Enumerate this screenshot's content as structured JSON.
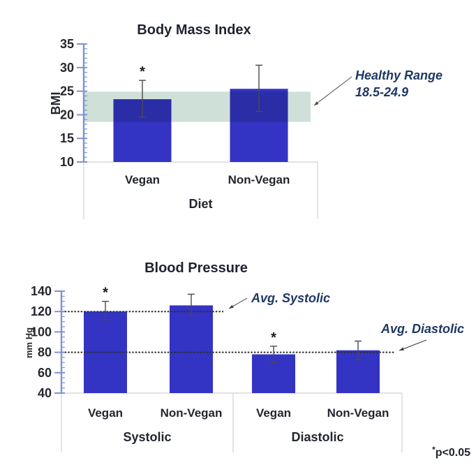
{
  "footnote": {
    "marker": "*",
    "text": "p<0.05"
  },
  "colors": {
    "bar": "#3333c4",
    "band": "#cfe0d8",
    "axis": "#7e93d2",
    "box": "#d8d8d8",
    "error": "#4a4a4a",
    "ref_line": "#2d2d2d",
    "annotation": "#1f3864",
    "text_dark": "#20242f"
  },
  "chart_data": [
    {
      "type": "bar",
      "title": "Body Mass Index",
      "xlabel": "Diet",
      "ylabel": "BMI",
      "categories": [
        "Vegan",
        "Non-Vegan"
      ],
      "values": [
        23.3,
        25.5
      ],
      "error_bars": [
        [
          19.5,
          27.3
        ],
        [
          20.7,
          30.5
        ]
      ],
      "significance": [
        "*",
        ""
      ],
      "ylim": [
        10,
        35
      ],
      "ytick_step": 5,
      "yminor_step": 1,
      "grid": false,
      "band": {
        "from": 18.5,
        "to": 24.9,
        "color": "#cfe0d8",
        "label_line1": "Healthy Range",
        "label_line2": "18.5-24.9"
      }
    },
    {
      "type": "bar",
      "title": "Blood Pressure",
      "ylabel": "mm Hg",
      "groups": [
        "Systolic",
        "Diastolic"
      ],
      "group_of": [
        0,
        0,
        1,
        1
      ],
      "categories": [
        "Vegan",
        "Non-Vegan",
        "Vegan",
        "Non-Vegan"
      ],
      "values": [
        120,
        126,
        78,
        82
      ],
      "error_bars": [
        [
          112,
          130
        ],
        [
          116,
          137
        ],
        [
          70,
          86
        ],
        [
          73,
          91
        ]
      ],
      "significance": [
        "*",
        "",
        "*",
        ""
      ],
      "ylim": [
        40,
        140
      ],
      "ytick_step": 20,
      "yminor_step": 5,
      "grid": false,
      "ref_lines": [
        {
          "label": "Avg. Systolic",
          "value": 120
        },
        {
          "label": "Avg. Diastolic",
          "value": 80
        }
      ]
    }
  ]
}
